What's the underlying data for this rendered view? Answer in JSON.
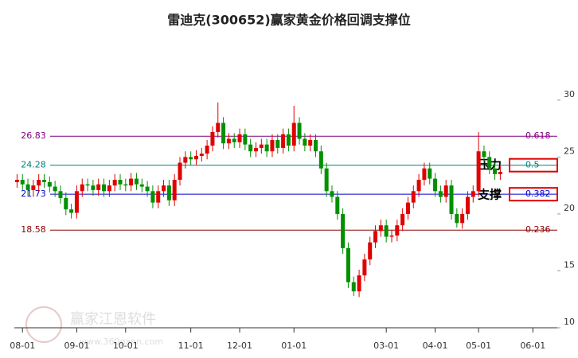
{
  "chart_data": {
    "type": "candlestick",
    "title": "雷迪克(300652)赢家黄金价格回调支撑位",
    "watermark": "赢家江恩软件",
    "watermark_url": "www.360gann.com",
    "up_color": "#e00000",
    "down_color": "#009000",
    "ylim": [
      10,
      36
    ],
    "yticks": [
      10,
      15,
      20,
      25,
      30
    ],
    "xlim": [
      0,
      100
    ],
    "xticks": [
      {
        "value": 1,
        "label": "08-01"
      },
      {
        "value": 11,
        "label": "09-01"
      },
      {
        "value": 20,
        "label": "10-01"
      },
      {
        "value": 32,
        "label": "11-01"
      },
      {
        "value": 41,
        "label": "12-01"
      },
      {
        "value": 51,
        "label": "01-01"
      },
      {
        "value": 68,
        "label": "03-01"
      },
      {
        "value": 77,
        "label": "04-01"
      },
      {
        "value": 85,
        "label": "05-01"
      },
      {
        "value": 95,
        "label": "06-01"
      }
    ],
    "levels": [
      {
        "ratio": 0.618,
        "price": 26.83,
        "color": "#800080"
      },
      {
        "ratio": 0.5,
        "price": 24.28,
        "color": "#008080",
        "note": "压力"
      },
      {
        "ratio": 0.382,
        "price": 21.73,
        "color": "#0000cc",
        "note": "支撑"
      },
      {
        "ratio": 0.236,
        "price": 18.58,
        "color": "#8b0000"
      }
    ],
    "candles": [
      [
        22.8,
        23.5,
        22.3,
        23.0
      ],
      [
        23.0,
        23.5,
        22.1,
        22.6
      ],
      [
        22.6,
        23.1,
        21.6,
        22.1
      ],
      [
        22.1,
        23.0,
        21.6,
        22.5
      ],
      [
        22.5,
        23.5,
        22.0,
        23.0
      ],
      [
        23.0,
        23.5,
        22.3,
        22.8
      ],
      [
        22.8,
        23.3,
        21.9,
        22.4
      ],
      [
        22.4,
        22.9,
        21.5,
        22.0
      ],
      [
        22.0,
        22.5,
        20.9,
        21.4
      ],
      [
        21.4,
        21.9,
        19.9,
        20.4
      ],
      [
        20.4,
        20.9,
        19.6,
        20.1
      ],
      [
        20.1,
        22.5,
        19.6,
        22.0
      ],
      [
        22.0,
        23.1,
        21.5,
        22.6
      ],
      [
        22.6,
        23.1,
        22.0,
        22.5
      ],
      [
        22.5,
        23.0,
        21.6,
        22.1
      ],
      [
        22.1,
        23.1,
        21.6,
        22.6
      ],
      [
        22.6,
        23.1,
        21.5,
        22.0
      ],
      [
        22.0,
        23.0,
        21.5,
        22.5
      ],
      [
        22.5,
        23.5,
        22.0,
        23.0
      ],
      [
        23.0,
        23.5,
        22.1,
        22.6
      ],
      [
        22.6,
        23.1,
        22.0,
        22.5
      ],
      [
        22.5,
        23.6,
        22.0,
        23.1
      ],
      [
        23.1,
        23.6,
        22.1,
        22.6
      ],
      [
        22.6,
        23.1,
        21.9,
        22.4
      ],
      [
        22.4,
        22.9,
        21.5,
        22.0
      ],
      [
        22.0,
        22.5,
        20.5,
        21.0
      ],
      [
        21.0,
        22.5,
        20.5,
        22.0
      ],
      [
        22.0,
        23.0,
        21.5,
        22.5
      ],
      [
        22.5,
        23.0,
        20.7,
        21.2
      ],
      [
        21.2,
        23.5,
        20.7,
        23.0
      ],
      [
        23.0,
        25.0,
        22.5,
        24.5
      ],
      [
        24.5,
        25.5,
        24.0,
        25.0
      ],
      [
        25.0,
        25.5,
        24.3,
        24.8
      ],
      [
        24.8,
        25.6,
        24.3,
        25.1
      ],
      [
        25.1,
        25.8,
        24.6,
        25.3
      ],
      [
        25.3,
        26.5,
        24.8,
        26.0
      ],
      [
        26.0,
        27.7,
        25.5,
        27.2
      ],
      [
        27.2,
        29.8,
        26.7,
        28.0
      ],
      [
        28.0,
        28.5,
        25.7,
        26.2
      ],
      [
        26.2,
        27.1,
        25.7,
        26.6
      ],
      [
        26.6,
        27.1,
        25.8,
        26.3
      ],
      [
        26.3,
        27.5,
        25.8,
        27.0
      ],
      [
        27.0,
        27.5,
        25.6,
        26.1
      ],
      [
        26.1,
        26.6,
        25.0,
        25.5
      ],
      [
        25.5,
        26.3,
        25.0,
        25.8
      ],
      [
        25.8,
        26.6,
        25.3,
        26.1
      ],
      [
        26.1,
        26.6,
        25.0,
        25.5
      ],
      [
        25.5,
        27.0,
        25.0,
        26.5
      ],
      [
        26.5,
        27.0,
        25.3,
        25.8
      ],
      [
        25.8,
        27.5,
        25.3,
        27.0
      ],
      [
        27.0,
        27.5,
        25.5,
        26.0
      ],
      [
        26.0,
        29.5,
        25.5,
        28.0
      ],
      [
        28.0,
        28.5,
        26.1,
        26.6
      ],
      [
        26.6,
        27.1,
        25.5,
        26.0
      ],
      [
        26.0,
        27.0,
        25.5,
        26.5
      ],
      [
        26.5,
        27.0,
        25.0,
        25.5
      ],
      [
        25.5,
        26.0,
        23.5,
        24.0
      ],
      [
        24.0,
        24.5,
        21.5,
        22.0
      ],
      [
        22.0,
        22.5,
        21.0,
        21.5
      ],
      [
        21.5,
        22.0,
        19.5,
        20.0
      ],
      [
        20.0,
        20.5,
        16.5,
        17.0
      ],
      [
        17.0,
        17.5,
        13.5,
        14.0
      ],
      [
        14.0,
        14.5,
        12.8,
        13.2
      ],
      [
        13.2,
        15.1,
        12.7,
        14.6
      ],
      [
        14.6,
        16.5,
        14.1,
        16.0
      ],
      [
        16.0,
        18.0,
        15.5,
        17.5
      ],
      [
        17.5,
        19.0,
        17.0,
        18.5
      ],
      [
        18.5,
        19.5,
        18.0,
        19.0
      ],
      [
        19.0,
        19.5,
        17.5,
        18.0
      ],
      [
        18.0,
        18.6,
        17.5,
        18.1
      ],
      [
        18.1,
        19.5,
        17.6,
        19.0
      ],
      [
        19.0,
        20.5,
        18.5,
        20.0
      ],
      [
        20.0,
        21.5,
        19.5,
        21.0
      ],
      [
        21.0,
        22.5,
        20.5,
        22.0
      ],
      [
        22.0,
        23.5,
        21.5,
        23.0
      ],
      [
        23.0,
        24.5,
        22.5,
        24.0
      ],
      [
        24.0,
        24.5,
        22.6,
        23.1
      ],
      [
        23.1,
        23.6,
        21.5,
        22.0
      ],
      [
        22.0,
        22.5,
        21.0,
        21.5
      ],
      [
        21.5,
        23.0,
        21.0,
        22.5
      ],
      [
        22.5,
        23.0,
        19.5,
        20.0
      ],
      [
        20.0,
        20.5,
        18.8,
        19.2
      ],
      [
        19.2,
        20.5,
        18.7,
        20.0
      ],
      [
        20.0,
        22.0,
        19.5,
        21.5
      ],
      [
        21.5,
        22.5,
        21.0,
        22.0
      ],
      [
        22.0,
        27.2,
        21.5,
        25.5
      ],
      [
        25.5,
        26.0,
        24.5,
        25.0
      ],
      [
        25.0,
        25.5,
        23.5,
        24.0
      ],
      [
        24.0,
        24.5,
        23.0,
        23.5
      ],
      [
        23.5,
        24.2,
        23.0,
        23.7
      ]
    ]
  }
}
